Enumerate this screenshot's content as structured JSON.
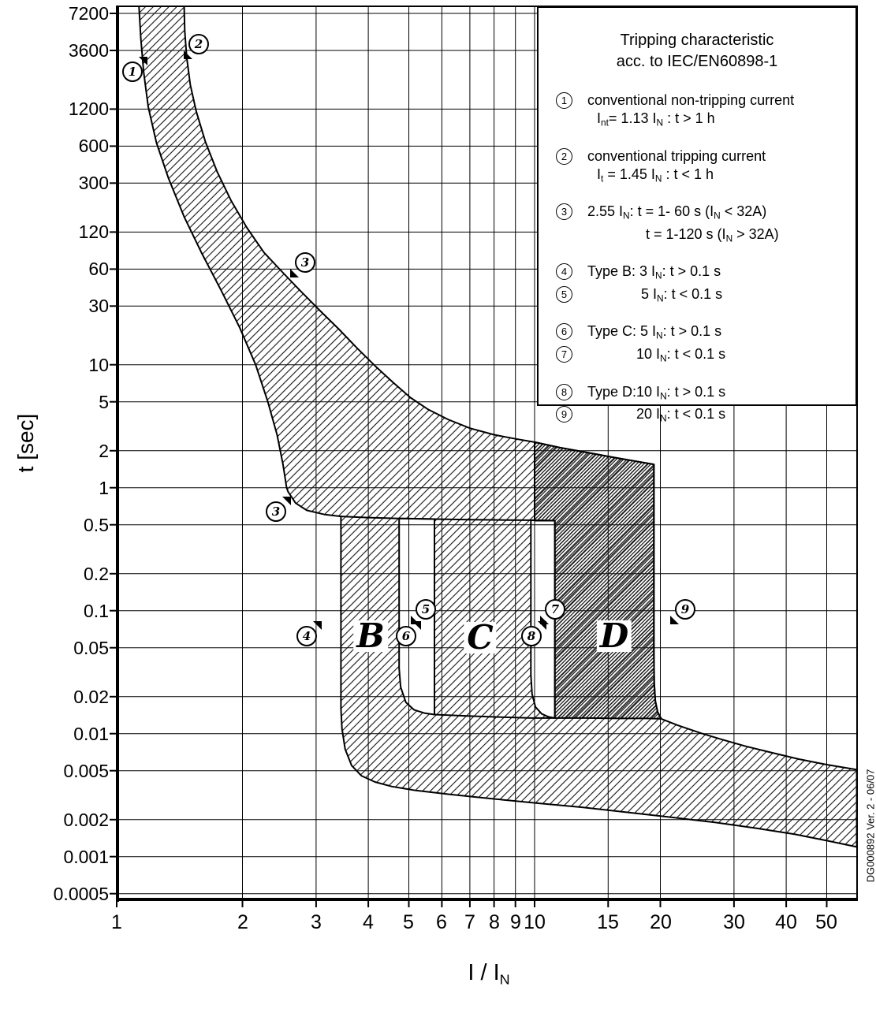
{
  "side_note": "DG000892 Ver. 2 - 06/07",
  "axes": {
    "y_title": "t [sec]",
    "x_title_main": "I / I",
    "x_title_sub": "N"
  },
  "colors": {
    "line": "#000000",
    "background": "#ffffff",
    "hatch": "#141414"
  },
  "legend": {
    "title_lines": [
      "Tripping characteristic",
      "acc. to IEC/EN60898-1"
    ],
    "rows": [
      {
        "num": "1",
        "indent": 0,
        "gap": false,
        "segs": [
          {
            "t": "conventional non-tripping current"
          }
        ]
      },
      {
        "num": null,
        "indent": 12,
        "gap": false,
        "segs": [
          {
            "t": "I"
          },
          {
            "s": "nt"
          },
          {
            "t": "= 1.13 I"
          },
          {
            "s": "N"
          },
          {
            "t": " : t > 1 h"
          }
        ]
      },
      {
        "num": "2",
        "indent": 0,
        "gap": true,
        "segs": [
          {
            "t": "conventional tripping current"
          }
        ]
      },
      {
        "num": null,
        "indent": 12,
        "gap": false,
        "segs": [
          {
            "t": "I"
          },
          {
            "s": "t"
          },
          {
            "t": " = 1.45 I"
          },
          {
            "s": "N"
          },
          {
            "t": " : t < 1 h"
          }
        ]
      },
      {
        "num": "3",
        "indent": 0,
        "gap": true,
        "segs": [
          {
            "t": "2.55 I"
          },
          {
            "s": "N"
          },
          {
            "t": ": t = 1- 60 s (I"
          },
          {
            "s": "N"
          },
          {
            "t": " < 32A)"
          }
        ]
      },
      {
        "num": null,
        "indent": 74,
        "gap": false,
        "segs": [
          {
            "t": "t = 1-120 s (I"
          },
          {
            "s": "N"
          },
          {
            "t": " > 32A)"
          }
        ]
      },
      {
        "num": "4",
        "indent": 0,
        "gap": true,
        "segs": [
          {
            "t": "Type B: 3 I"
          },
          {
            "s": "N"
          },
          {
            "t": ": t > 0.1 s"
          }
        ]
      },
      {
        "num": "5",
        "indent": 68,
        "gap": false,
        "segs": [
          {
            "t": "5 I"
          },
          {
            "s": "N"
          },
          {
            "t": ": t < 0.1 s"
          }
        ]
      },
      {
        "num": "6",
        "indent": 0,
        "gap": true,
        "segs": [
          {
            "t": "Type C: 5 I"
          },
          {
            "s": "N"
          },
          {
            "t": ": t > 0.1 s"
          }
        ]
      },
      {
        "num": "7",
        "indent": 62,
        "gap": false,
        "segs": [
          {
            "t": "10 I"
          },
          {
            "s": "N"
          },
          {
            "t": ": t < 0.1 s"
          }
        ]
      },
      {
        "num": "8",
        "indent": 0,
        "gap": true,
        "segs": [
          {
            "t": "Type D:10 I"
          },
          {
            "s": "N"
          },
          {
            "t": ": t > 0.1 s"
          }
        ]
      },
      {
        "num": "9",
        "indent": 62,
        "gap": false,
        "segs": [
          {
            "t": "20 I"
          },
          {
            "s": "N"
          },
          {
            "t": ": t < 0.1 s"
          }
        ]
      }
    ]
  },
  "chart_data": {
    "type": "area",
    "title": "Tripping characteristic acc. to IEC/EN60898-1",
    "x_axis": {
      "label": "I / I_N",
      "scale": "log",
      "min": 1,
      "max": 59,
      "ticks": [
        1,
        2,
        3,
        4,
        5,
        6,
        7,
        8,
        9,
        10,
        15,
        20,
        30,
        40,
        50
      ]
    },
    "y_axis": {
      "label": "t [sec]",
      "scale": "log",
      "min": 0.00045,
      "max": 8300,
      "ticks": [
        7200,
        3600,
        1200,
        600,
        300,
        120,
        60,
        30,
        10,
        5,
        2,
        1,
        0.5,
        0.2,
        0.1,
        0.05,
        0.02,
        0.01,
        0.005,
        0.002,
        0.001,
        0.0005
      ]
    },
    "tick_labels_x": [
      "1",
      "2",
      "3",
      "4",
      "5",
      "6",
      "7",
      "8",
      "9",
      "10",
      "15",
      "20",
      "30",
      "40",
      "50"
    ],
    "tick_labels_y": [
      "7200",
      "3600",
      "1200",
      "600",
      "300",
      "120",
      "60",
      "30",
      "10",
      "5",
      "2",
      "1",
      "0.5",
      "0.2",
      "0.1",
      "0.05",
      "0.02",
      "0.01",
      "0.005",
      "0.002",
      "0.001",
      "0.0005"
    ],
    "key_limits": {
      "conventional_non_tripping": 1.13,
      "conventional_tripping": 1.45,
      "thermal_knee": 2.55,
      "type_B_magnetic": [
        3,
        5
      ],
      "type_C_magnetic": [
        5,
        10
      ],
      "type_D_magnetic": [
        10,
        20
      ]
    },
    "regions": {
      "thermal_B_C_band_outer": [
        [
          1.45,
          8500
        ],
        [
          1.455,
          5200
        ],
        [
          1.47,
          3200
        ],
        [
          1.5,
          1900
        ],
        [
          1.55,
          1150
        ],
        [
          1.63,
          650
        ],
        [
          1.74,
          370
        ],
        [
          1.88,
          215
        ],
        [
          2.05,
          130
        ],
        [
          2.25,
          82
        ],
        [
          2.5,
          56
        ],
        [
          2.75,
          40
        ],
        [
          3.05,
          28
        ],
        [
          3.4,
          19.5
        ],
        [
          3.75,
          13.8
        ],
        [
          4.15,
          9.8
        ],
        [
          4.6,
          7.1
        ],
        [
          5.05,
          5.4
        ],
        [
          5.55,
          4.35
        ],
        [
          6.2,
          3.6
        ],
        [
          7.0,
          3.05
        ],
        [
          8.0,
          2.7
        ],
        [
          9.0,
          2.5
        ],
        [
          10.0,
          2.35
        ],
        [
          11.5,
          2.12
        ],
        [
          13.5,
          1.92
        ],
        [
          15.5,
          1.76
        ],
        [
          17.5,
          1.64
        ],
        [
          19.3,
          1.55
        ],
        [
          19.3,
          0.9
        ],
        [
          19.3,
          0.35
        ],
        [
          19.3,
          0.12
        ],
        [
          19.3,
          0.045
        ],
        [
          19.33,
          0.026
        ],
        [
          19.45,
          0.0185
        ],
        [
          19.7,
          0.015
        ],
        [
          20.1,
          0.0132
        ],
        [
          22,
          0.0117
        ],
        [
          25,
          0.0101
        ],
        [
          28,
          0.009
        ],
        [
          32,
          0.0079
        ],
        [
          37,
          0.007
        ],
        [
          43,
          0.0062
        ],
        [
          50,
          0.0056
        ],
        [
          59,
          0.0051
        ],
        [
          59,
          0.0012
        ],
        [
          50,
          0.00135
        ],
        [
          42,
          0.00152
        ],
        [
          34,
          0.0017
        ],
        [
          27,
          0.0019
        ],
        [
          21,
          0.0021
        ],
        [
          16.5,
          0.0023
        ],
        [
          13,
          0.00252
        ],
        [
          10.2,
          0.00272
        ],
        [
          8.0,
          0.00295
        ],
        [
          6.3,
          0.0032
        ],
        [
          5.2,
          0.00345
        ],
        [
          4.55,
          0.00372
        ],
        [
          4.15,
          0.00405
        ],
        [
          3.85,
          0.00455
        ],
        [
          3.65,
          0.0055
        ],
        [
          3.52,
          0.0075
        ],
        [
          3.46,
          0.011
        ],
        [
          3.44,
          0.016
        ],
        [
          3.44,
          0.024
        ],
        [
          3.44,
          0.08
        ],
        [
          3.44,
          0.3
        ],
        [
          3.44,
          0.585
        ],
        [
          3.15,
          0.605
        ],
        [
          2.85,
          0.655
        ],
        [
          2.68,
          0.75
        ],
        [
          2.57,
          0.93
        ],
        [
          2.55,
          1.0
        ],
        [
          2.5,
          1.55
        ],
        [
          2.42,
          2.7
        ],
        [
          2.3,
          5.0
        ],
        [
          2.15,
          10
        ],
        [
          1.97,
          20
        ],
        [
          1.78,
          40
        ],
        [
          1.6,
          80
        ],
        [
          1.45,
          160
        ],
        [
          1.33,
          330
        ],
        [
          1.245,
          640
        ],
        [
          1.19,
          1250
        ],
        [
          1.16,
          2400
        ],
        [
          1.142,
          4500
        ],
        [
          1.13,
          8500
        ]
      ],
      "gap_B_C": [
        [
          4.74,
          0.563
        ],
        [
          4.74,
          0.25
        ],
        [
          4.74,
          0.09
        ],
        [
          4.74,
          0.034
        ],
        [
          4.78,
          0.024
        ],
        [
          4.92,
          0.018
        ],
        [
          5.15,
          0.0156
        ],
        [
          5.45,
          0.0147
        ],
        [
          5.76,
          0.0143
        ],
        [
          5.76,
          0.06
        ],
        [
          5.76,
          0.22
        ],
        [
          5.76,
          0.556
        ],
        [
          5.4,
          0.559
        ],
        [
          5.0,
          0.561
        ]
      ],
      "gap_C_D": [
        [
          9.8,
          0.545
        ],
        [
          9.8,
          0.25
        ],
        [
          9.8,
          0.09
        ],
        [
          9.8,
          0.03
        ],
        [
          9.86,
          0.021
        ],
        [
          10.05,
          0.0165
        ],
        [
          10.4,
          0.0145
        ],
        [
          10.8,
          0.0137
        ],
        [
          11.18,
          0.0134
        ],
        [
          11.18,
          0.06
        ],
        [
          11.18,
          0.25
        ],
        [
          11.18,
          0.54
        ],
        [
          10.5,
          0.542
        ]
      ],
      "type_D_band": [
        [
          10,
          2.35
        ],
        [
          11.5,
          2.12
        ],
        [
          13.5,
          1.92
        ],
        [
          15.5,
          1.76
        ],
        [
          17.5,
          1.64
        ],
        [
          19.3,
          1.55
        ],
        [
          19.3,
          0.9
        ],
        [
          19.3,
          0.35
        ],
        [
          19.3,
          0.12
        ],
        [
          19.3,
          0.045
        ],
        [
          19.33,
          0.026
        ],
        [
          19.45,
          0.0185
        ],
        [
          19.7,
          0.015
        ],
        [
          20.1,
          0.0132
        ],
        [
          18.5,
          0.0133
        ],
        [
          16,
          0.0133
        ],
        [
          13.5,
          0.0134
        ],
        [
          11.18,
          0.0134
        ],
        [
          11.18,
          0.25
        ],
        [
          11.18,
          0.54
        ],
        [
          10.0,
          0.54
        ],
        [
          10.0,
          1.0
        ],
        [
          10.0,
          1.6
        ]
      ],
      "boundary_lines": [
        [
          [
            3.44,
            0.585
          ],
          [
            4.0,
            0.572
          ],
          [
            4.74,
            0.563
          ],
          [
            5.76,
            0.556
          ],
          [
            7.0,
            0.55
          ],
          [
            8.5,
            0.546
          ],
          [
            9.8,
            0.545
          ],
          [
            11.2,
            0.54
          ]
        ],
        [
          [
            5.76,
            0.0143
          ],
          [
            7.0,
            0.0139
          ],
          [
            8.5,
            0.0136
          ],
          [
            9.86,
            0.0134
          ],
          [
            11.18,
            0.0134
          ]
        ]
      ]
    },
    "markers": [
      {
        "label": "1",
        "x": 1.08,
        "t": 2500,
        "flag": "tr"
      },
      {
        "label": "2",
        "x": 1.56,
        "t": 4200,
        "flag": "bl"
      },
      {
        "label": "3",
        "x": 2.8,
        "t": 70,
        "flag": "bl"
      },
      {
        "label": "3",
        "x": 2.38,
        "t": 0.66,
        "flag": "tr"
      },
      {
        "label": "4",
        "x": 2.82,
        "t": 0.064,
        "flag": "tr"
      },
      {
        "label": "5",
        "x": 5.45,
        "t": 0.105,
        "flag": "bl"
      },
      {
        "label": "6",
        "x": 4.88,
        "t": 0.064,
        "flag": "tr"
      },
      {
        "label": "7",
        "x": 11.1,
        "t": 0.105,
        "flag": "bl"
      },
      {
        "label": "8",
        "x": 9.75,
        "t": 0.064,
        "flag": "tr"
      },
      {
        "label": "9",
        "x": 22.7,
        "t": 0.105,
        "flag": "bl"
      }
    ],
    "band_labels": [
      {
        "text": "B",
        "x": 4.05,
        "t": 0.062
      },
      {
        "text": "C",
        "x": 7.4,
        "t": 0.06
      },
      {
        "text": "D",
        "x": 15.5,
        "t": 0.062
      }
    ]
  }
}
